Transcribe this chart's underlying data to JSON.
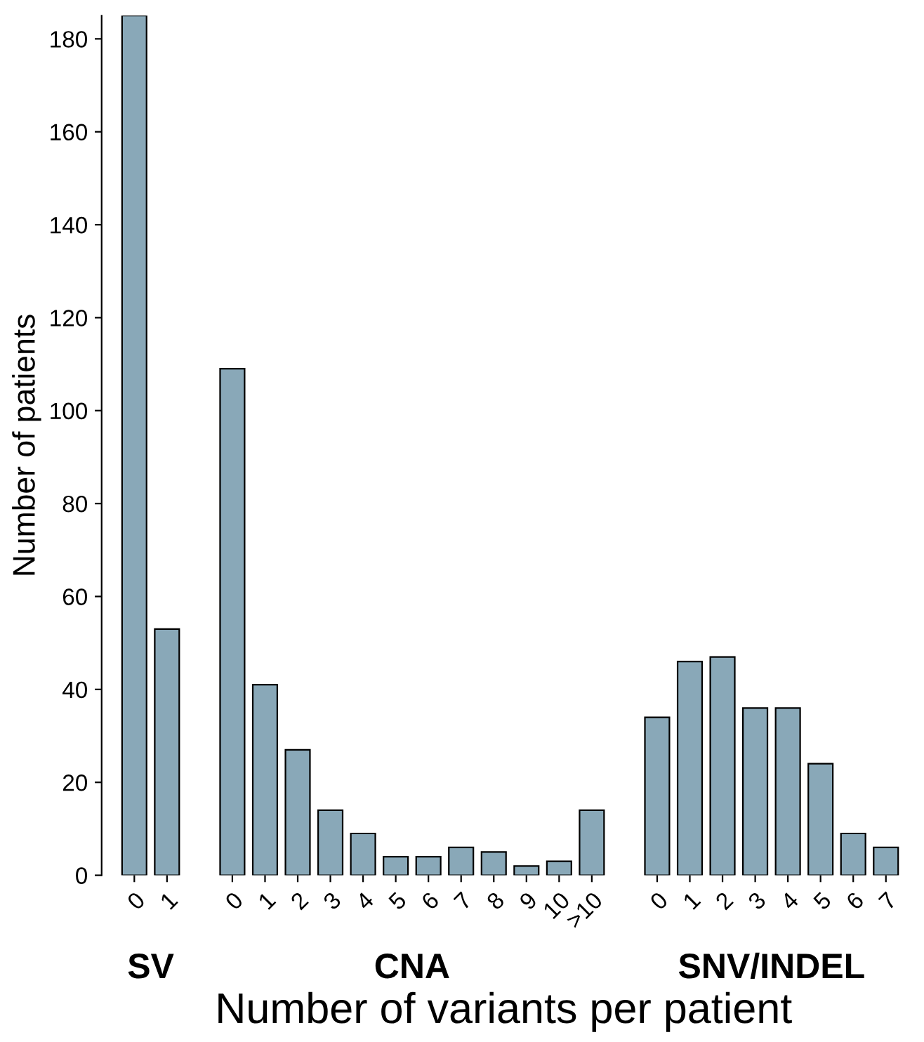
{
  "chart_data": {
    "type": "bar",
    "xlabel": "Number of variants per patient",
    "ylabel": "Number of patients",
    "categories": [
      "0",
      "1",
      null,
      "0",
      "1",
      "2",
      "3",
      "4",
      "5",
      "6",
      "7",
      "8",
      "9",
      "10",
      ">10",
      null,
      "0",
      "1",
      "2",
      "3",
      "4",
      "5",
      "6",
      "7"
    ],
    "values": [
      185,
      53,
      null,
      109,
      41,
      27,
      14,
      9,
      4,
      4,
      6,
      5,
      2,
      3,
      14,
      null,
      34,
      46,
      47,
      36,
      36,
      24,
      9,
      6
    ],
    "color": "#89a8b8",
    "ylim": [
      0,
      185
    ],
    "yticks": [
      0,
      20,
      40,
      60,
      80,
      100,
      120,
      140,
      160,
      180
    ],
    "grid": false,
    "annotations": [
      "SV",
      "CNA",
      "SNV/INDEL"
    ]
  }
}
